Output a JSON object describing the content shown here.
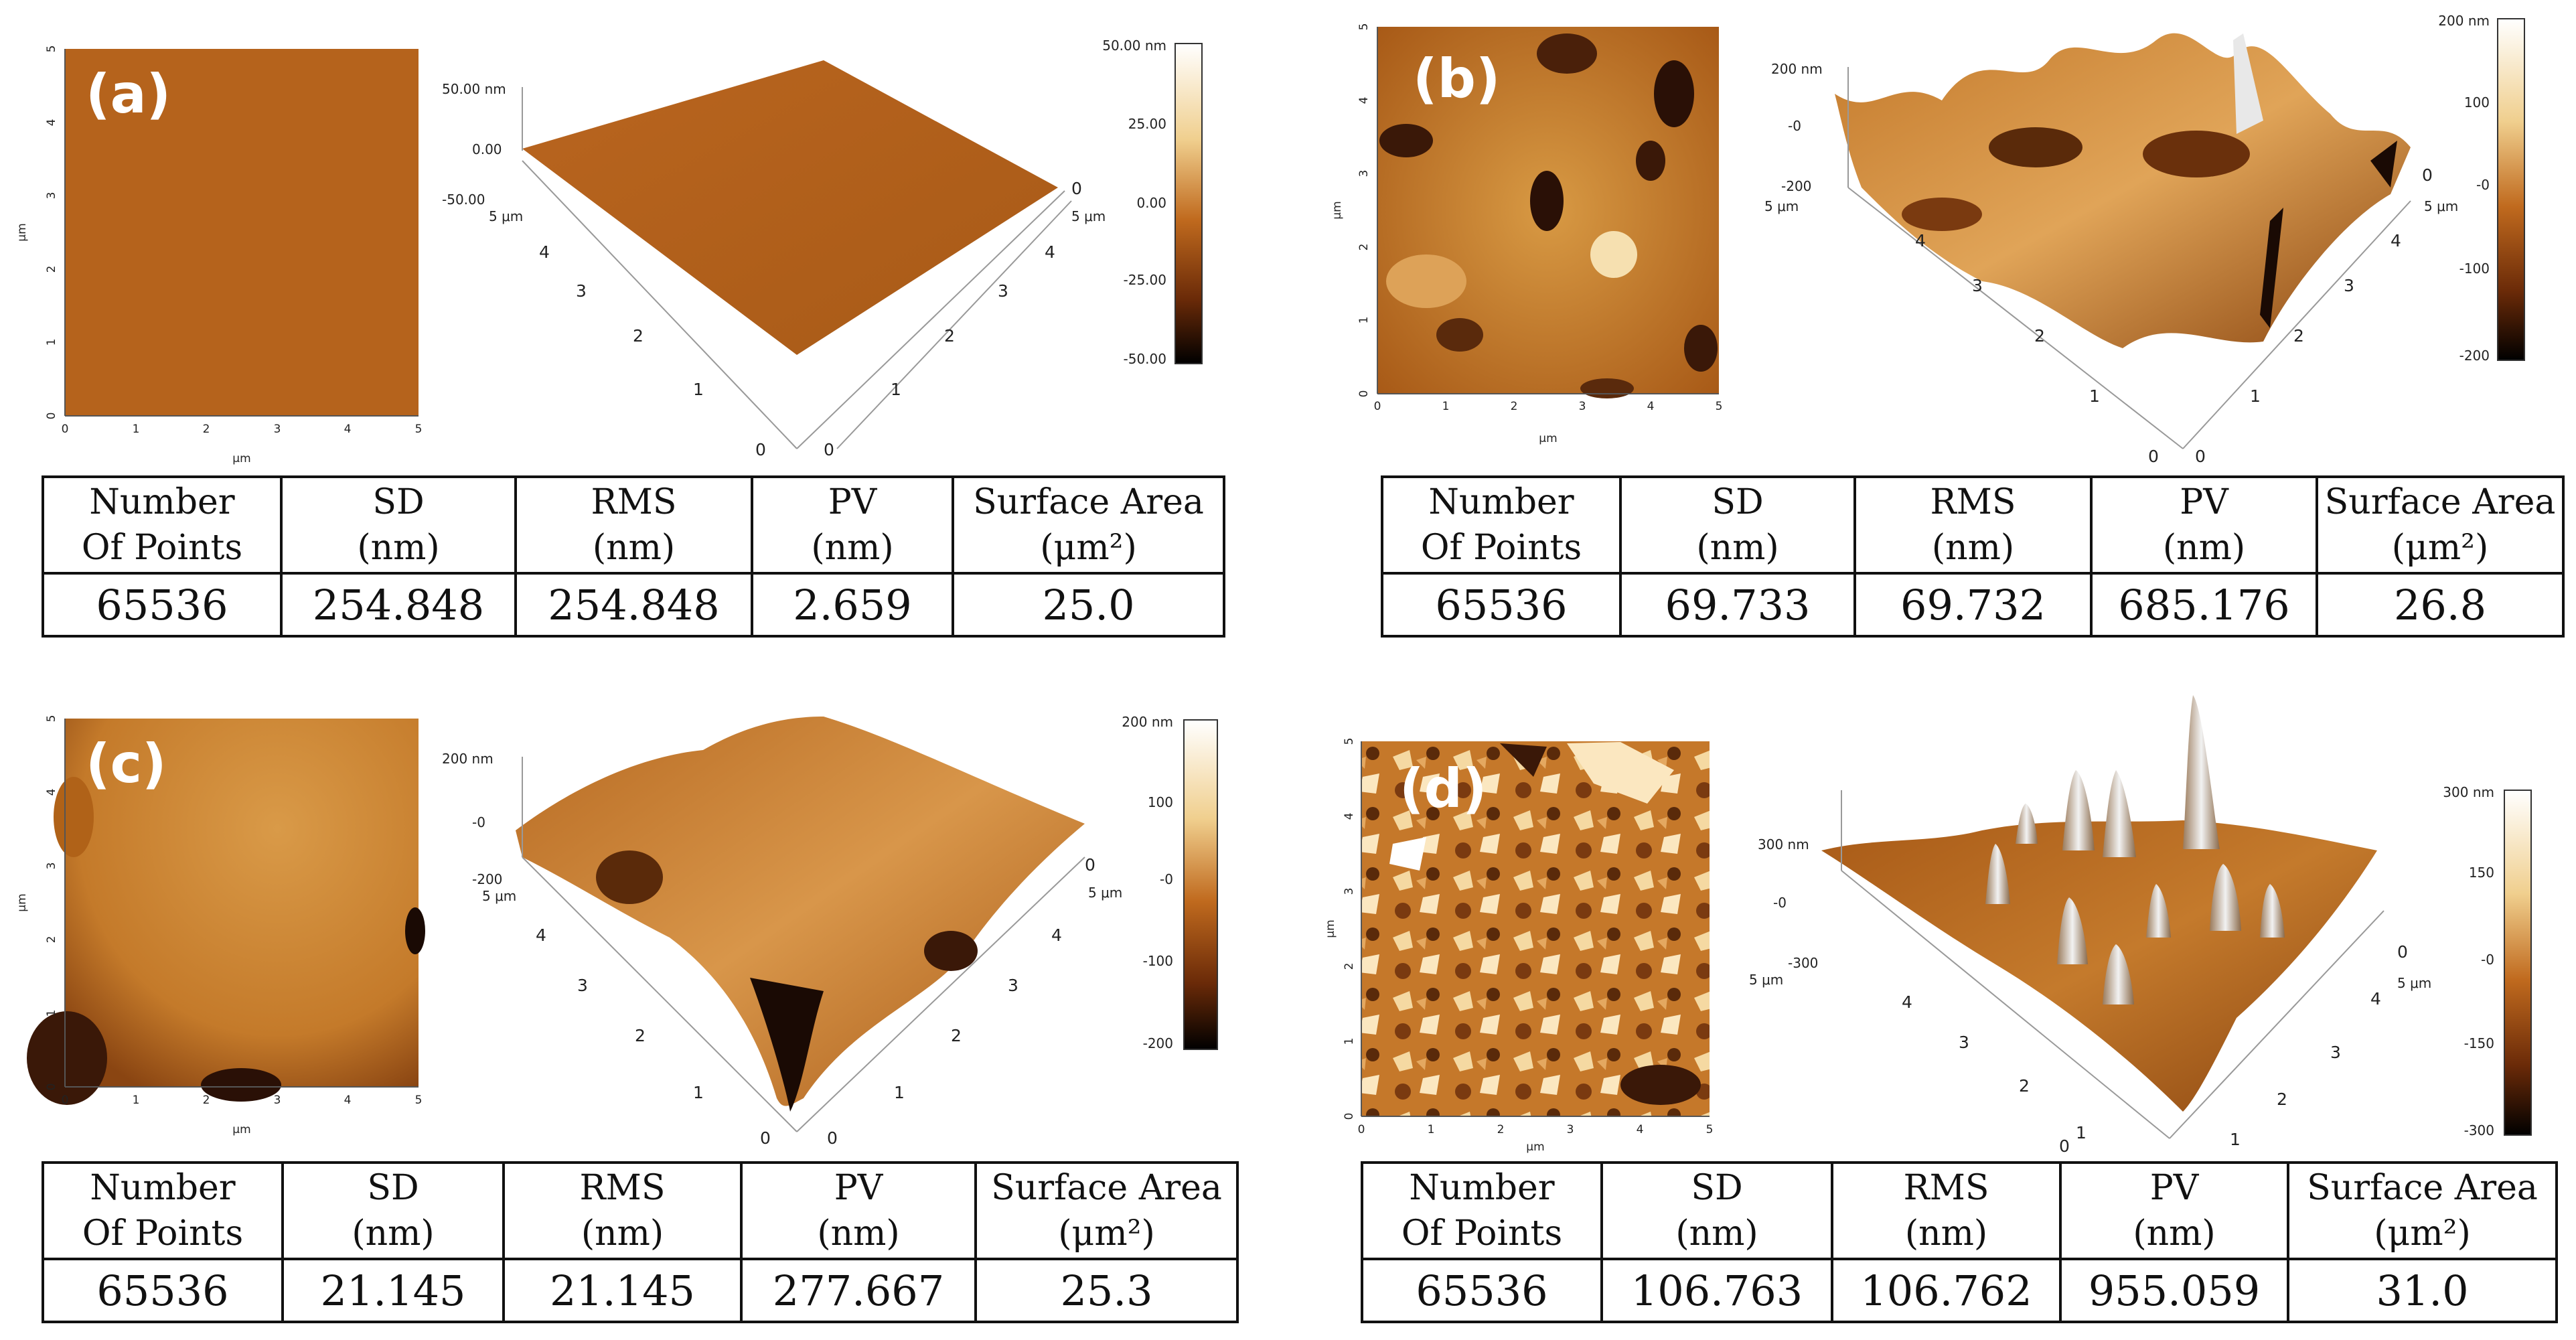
{
  "figure": {
    "columns": [
      {
        "line1": "Number",
        "line2": "Of Points"
      },
      {
        "line1": "SD",
        "line2": "(nm)"
      },
      {
        "line1": "RMS",
        "line2": "(nm)"
      },
      {
        "line1": "PV",
        "line2": "(nm)"
      },
      {
        "line1": "Surface Area",
        "line2": "(μm²)"
      }
    ],
    "axis_unit": "μm",
    "panels": [
      {
        "id": "a",
        "label": "(a)",
        "stats": [
          "65536",
          "254.848",
          "254.848",
          "2.659",
          "25.0"
        ],
        "colorbar": [
          "50.00 nm",
          "25.00",
          "0.00",
          "-25.00",
          "-50.00"
        ],
        "z_ticks": [
          "50.00 nm",
          "0.00",
          "-50.00"
        ]
      },
      {
        "id": "b",
        "label": "(b)",
        "stats": [
          "65536",
          "69.733",
          "69.732",
          "685.176",
          "26.8"
        ],
        "colorbar": [
          "200 nm",
          "100",
          "-0",
          "-100",
          "-200"
        ],
        "z_ticks": [
          "200 nm",
          "-0",
          "-200"
        ]
      },
      {
        "id": "c",
        "label": "(c)",
        "stats": [
          "65536",
          "21.145",
          "21.145",
          "277.667",
          "25.3"
        ],
        "colorbar": [
          "200 nm",
          "100",
          "-0",
          "-100",
          "-200"
        ],
        "z_ticks": [
          "200 nm",
          "-0",
          "-200"
        ]
      },
      {
        "id": "d",
        "label": "(d)",
        "stats": [
          "65536",
          "106.763",
          "106.762",
          "955.059",
          "31.0"
        ],
        "colorbar": [
          "300 nm",
          "150",
          "-0",
          "-150",
          "-300"
        ],
        "z_ticks": [
          "300 nm",
          "-0",
          "-300"
        ]
      }
    ],
    "xy_ticks": [
      "0",
      "1",
      "2",
      "3",
      "4",
      "5"
    ],
    "axis_end_label": "5 μm",
    "colors": {
      "surface_mid": "#b8651c",
      "surface_light": "#f3d9a4",
      "surface_dark": "#2b1206"
    }
  }
}
